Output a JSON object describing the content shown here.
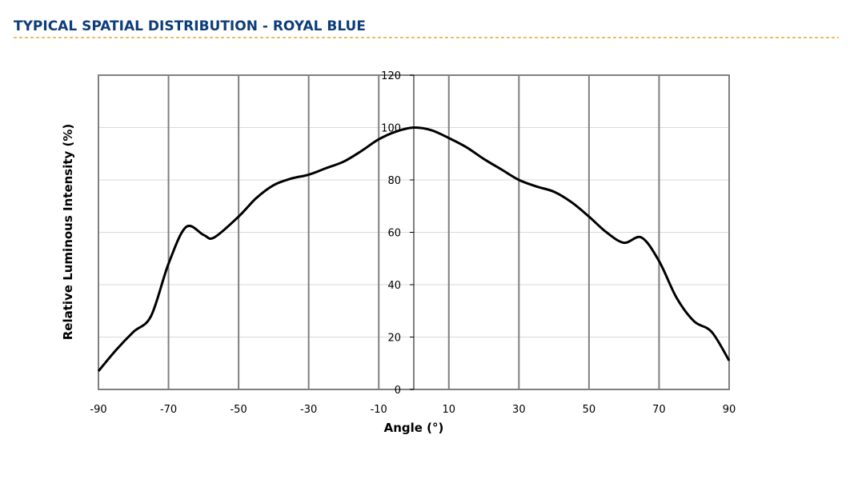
{
  "header": {
    "title": "TYPICAL SPATIAL DISTRIBUTION - ROYAL BLUE"
  },
  "chart_data": {
    "type": "line",
    "x_label": "Angle (°)",
    "y_label": "Relative Luminous Intensity (%)",
    "x": [
      -90,
      -85,
      -80,
      -75,
      -70,
      -65,
      -60,
      -57,
      -50,
      -45,
      -40,
      -35,
      -30,
      -25,
      -20,
      -15,
      -10,
      -5,
      0,
      5,
      10,
      15,
      20,
      25,
      30,
      35,
      40,
      45,
      50,
      55,
      60,
      65,
      70,
      75,
      80,
      85,
      90
    ],
    "series": [
      {
        "color": "#000000",
        "values": [
          7,
          15,
          22,
          28,
          48,
          62,
          59,
          58,
          66,
          73,
          78,
          80.5,
          82,
          84.5,
          87,
          91,
          95.5,
          98.5,
          100,
          99,
          96,
          92.5,
          88,
          84,
          80,
          77.5,
          75.5,
          71.5,
          66,
          60,
          56,
          58,
          49,
          35,
          26,
          22,
          11
        ]
      }
    ],
    "xlim": [
      -90,
      90
    ],
    "xticks": [
      -90,
      -70,
      -50,
      -30,
      -10,
      10,
      30,
      50,
      70,
      90
    ],
    "ylim": [
      0,
      120
    ],
    "yticks": [
      0,
      20,
      40,
      60,
      80,
      100,
      120
    ],
    "grid": true
  }
}
